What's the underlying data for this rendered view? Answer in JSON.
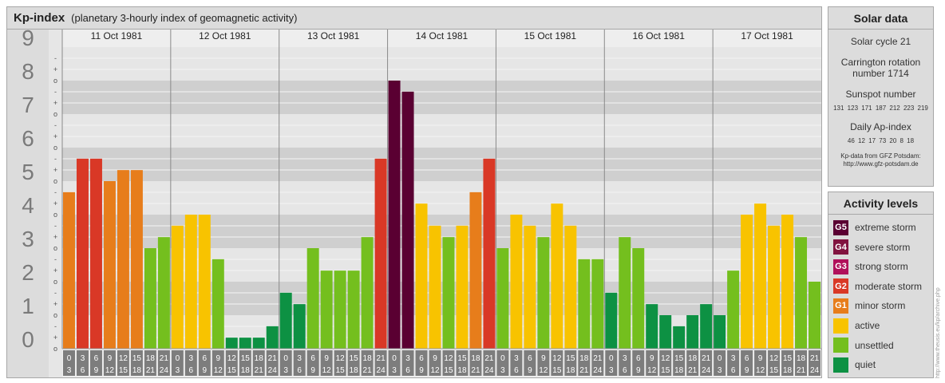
{
  "header": {
    "title": "Kp-index",
    "subtitle": "(planetary 3-hourly index of geomagnetic activity)"
  },
  "chart_data": {
    "type": "bar",
    "days": [
      "11 Oct 1981",
      "12 Oct 1981",
      "13 Oct 1981",
      "14 Oct 1981",
      "15 Oct 1981",
      "16 Oct 1981",
      "17 Oct 1981"
    ],
    "interval_labels": [
      [
        "0",
        "3"
      ],
      [
        "3",
        "6"
      ],
      [
        "6",
        "9"
      ],
      [
        "9",
        "12"
      ],
      [
        "12",
        "15"
      ],
      [
        "15",
        "18"
      ],
      [
        "18",
        "21"
      ],
      [
        "21",
        "24"
      ]
    ],
    "y_ticks": [
      "0",
      "1",
      "2",
      "3",
      "4",
      "5",
      "6",
      "7",
      "8",
      "9"
    ],
    "sub_ticks": [
      "o",
      "+",
      "-"
    ],
    "ylim": [
      0,
      9
    ],
    "values": [
      [
        4.67,
        5.67,
        5.67,
        5.0,
        5.33,
        5.33,
        3.0,
        3.33
      ],
      [
        3.67,
        4.0,
        4.0,
        2.67,
        0.33,
        0.33,
        0.33,
        0.67
      ],
      [
        1.67,
        1.33,
        3.0,
        2.33,
        2.33,
        2.33,
        3.33,
        5.67
      ],
      [
        8.0,
        7.67,
        4.33,
        3.67,
        3.33,
        3.67,
        4.67,
        5.67
      ],
      [
        3.0,
        4.0,
        3.67,
        3.33,
        4.33,
        3.67,
        2.67,
        2.67
      ],
      [
        1.67,
        3.33,
        3.0,
        1.33,
        1.0,
        0.67,
        1.0,
        1.33
      ],
      [
        1.0,
        2.33,
        4.0,
        4.33,
        3.67,
        4.0,
        3.33,
        2.0
      ]
    ],
    "colors": {
      "quiet": "#0d9143",
      "unsettled": "#74bf1e",
      "active": "#f8c300",
      "G1": "#e77d1b",
      "G2": "#d93826",
      "G3": "#b0105a",
      "G4": "#81133f",
      "G5": "#5a0032"
    },
    "grid": true
  },
  "solar": {
    "title": "Solar data",
    "cycle": "Solar cycle 21",
    "carrington_1": "Carrington rotation",
    "carrington_2": "number 1714",
    "sunspot_label": "Sunspot number",
    "sunspot_values": "131 123 171 187 212 223 219",
    "ap_label": "Daily Ap-index",
    "ap_values": "46 12 17 73 20 8 18",
    "source_1": "Kp-data from GFZ Potsdam:",
    "source_2": "http://www.gfz-potsdam.de"
  },
  "activity": {
    "title": "Activity levels",
    "items": [
      {
        "badge": "G5",
        "label": "extreme storm",
        "color": "#5a0032"
      },
      {
        "badge": "G4",
        "label": "severe storm",
        "color": "#81133f"
      },
      {
        "badge": "G3",
        "label": "strong storm",
        "color": "#b0105a"
      },
      {
        "badge": "G2",
        "label": "moderate storm",
        "color": "#d93826"
      },
      {
        "badge": "G1",
        "label": "minor storm",
        "color": "#e77d1b"
      },
      {
        "badge": "",
        "label": "active",
        "color": "#f8c300"
      },
      {
        "badge": "",
        "label": "unsettled",
        "color": "#74bf1e"
      },
      {
        "badge": "",
        "label": "quiet",
        "color": "#0d9143"
      }
    ]
  },
  "credit": "http://www.theusis.eu/kp/archive.php"
}
